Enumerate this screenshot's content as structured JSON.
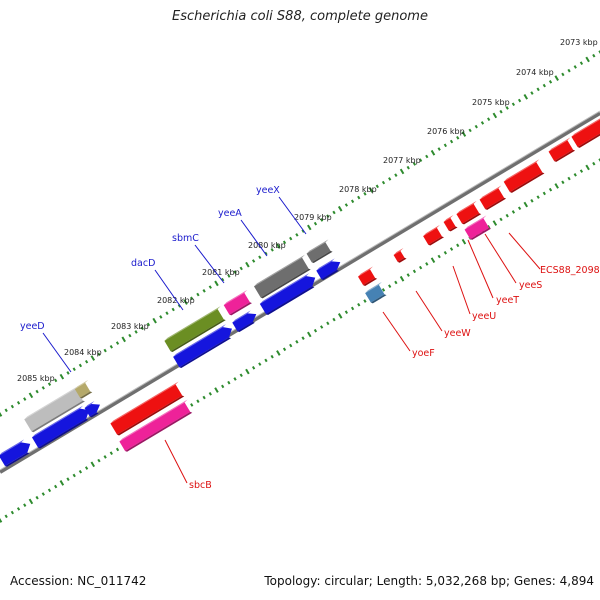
{
  "title": "Escherichia coli S88, complete genome",
  "footer": {
    "accession": "Accession: NC_011742",
    "summary": "Topology: circular; Length: 5,032,268 bp; Genes: 4,894"
  },
  "colors": {
    "backbone": "#8a8a8a",
    "tick": "#2e8b2e",
    "plus_label": "#1a1acc",
    "minus_label": "#dd1111"
  },
  "kbp_labels": [
    "2073 kbp",
    "2074 kbp",
    "2075 kbp",
    "2076 kbp",
    "2077 kbp",
    "2078 kbp",
    "2079 kbp",
    "2080 kbp",
    "2081 kbp",
    "2082 kbp",
    "2083 kbp",
    "2084 kbp",
    "2085 kbp"
  ],
  "plus_genes": [
    {
      "label": "yeeX",
      "color": "#6e6e6e"
    },
    {
      "label": "yeeA",
      "color": "#6e6e6e"
    },
    {
      "label": "sbmC",
      "color": "#ee2299"
    },
    {
      "label": "dacD",
      "color": "#6b8e23"
    },
    {
      "label": "yeeD",
      "color": "#bdbdbd"
    }
  ],
  "minus_genes": [
    {
      "label": "ECS88_2098",
      "color": "#ee1111"
    },
    {
      "label": "yeeS",
      "color": "#ee1111"
    },
    {
      "label": "yeeT",
      "color": "#ee2299"
    },
    {
      "label": "yeeU",
      "color": "#ee1111"
    },
    {
      "label": "yeeW",
      "color": "#ee1111"
    },
    {
      "label": "yoeF",
      "color": "#4682b4"
    },
    {
      "label": "sbcB",
      "color": "#ee2299"
    }
  ]
}
